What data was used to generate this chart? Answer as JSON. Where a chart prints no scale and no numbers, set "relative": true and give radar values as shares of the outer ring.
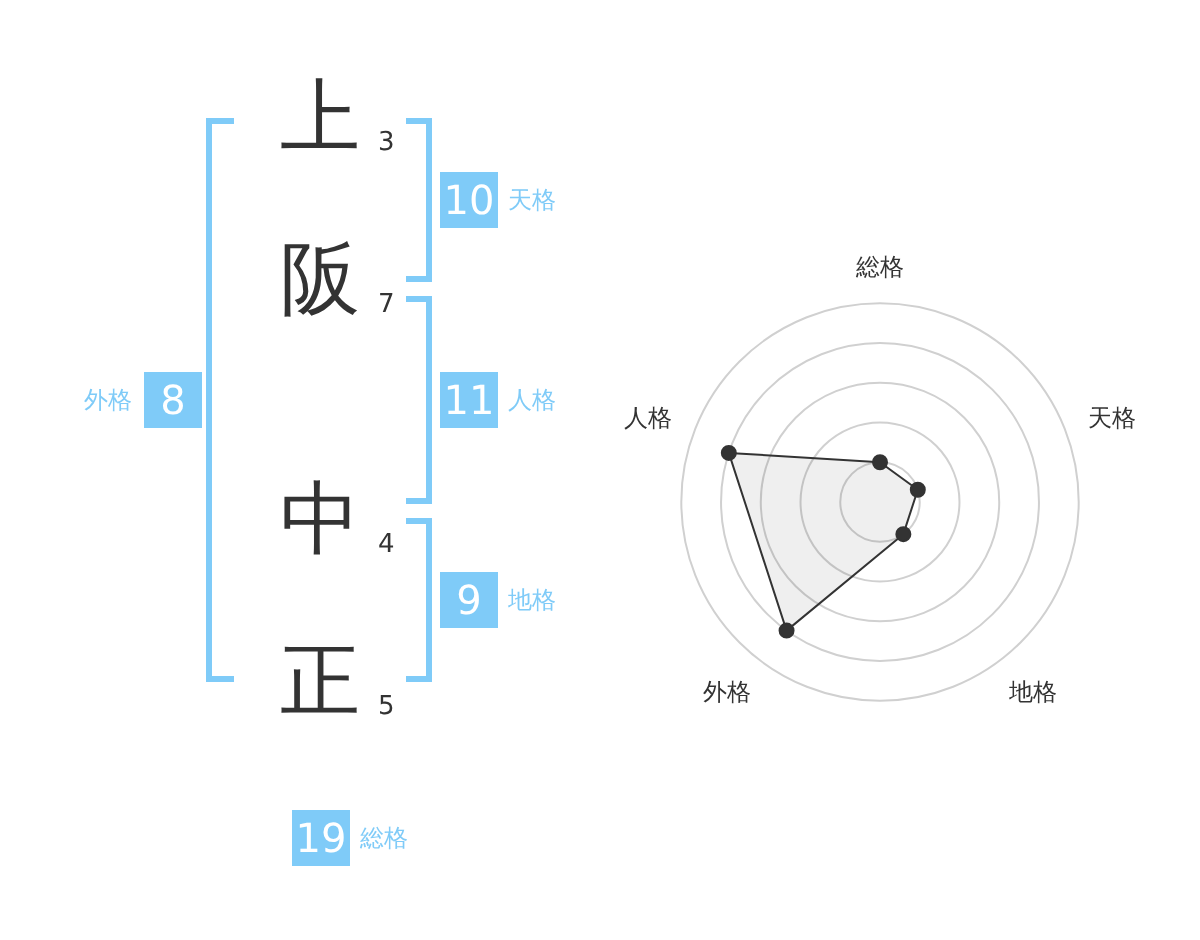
{
  "chart_data": [
    {
      "type": "other",
      "categories": [
        "上",
        "阪",
        "中",
        "正"
      ],
      "annotations": [
        "3",
        "7",
        "4",
        "5",
        "10",
        "天格",
        "11",
        "人格",
        "9",
        "地格",
        "8",
        "外格",
        "19",
        "総格"
      ],
      "color": "#7fcbf8"
    },
    {
      "type": "radar",
      "categories": [
        "総格",
        "天格",
        "地格",
        "外格",
        "人格"
      ],
      "relative": true,
      "series": [
        {
          "color": "#333333",
          "values": [
            0.2,
            0.2,
            0.2,
            0.8,
            0.8
          ]
        }
      ],
      "grid": true,
      "marker": "circle"
    }
  ]
}
